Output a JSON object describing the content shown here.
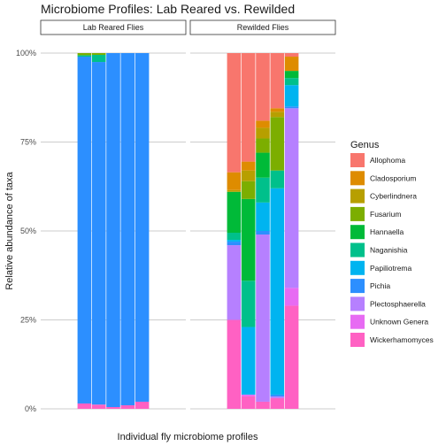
{
  "chart_data": {
    "type": "bar",
    "stacked": true,
    "title": "Microbiome Profiles: Lab Reared vs. Rewilded",
    "xlabel": "Individual fly microbiome profiles",
    "ylabel": "Relative abundance of taxa",
    "ylim": [
      0,
      1
    ],
    "y_ticks": [
      "0%",
      "25%",
      "50%",
      "75%",
      "100%"
    ],
    "grid": true,
    "legend_title": "Genus",
    "legend_position": "right",
    "genera": [
      {
        "name": "Allophoma",
        "color": "#F8766D"
      },
      {
        "name": "Cladosporium",
        "color": "#DE8C00"
      },
      {
        "name": "Cyberlindnera",
        "color": "#B79F00"
      },
      {
        "name": "Fusarium",
        "color": "#7CAE00"
      },
      {
        "name": "Hannaella",
        "color": "#00BA38"
      },
      {
        "name": "Naganishia",
        "color": "#00C08B"
      },
      {
        "name": "Papiliotrema",
        "color": "#00B4F0"
      },
      {
        "name": "Pichia",
        "color": "#2C8FFF"
      },
      {
        "name": "Plectosphaerella",
        "color": "#B680FF"
      },
      {
        "name": "Unknown Genera",
        "color": "#E76BF3"
      },
      {
        "name": "Wickerhamomyces",
        "color": "#FF61C3"
      }
    ],
    "stack_order_bottom_to_top": [
      "Wickerhamomyces",
      "Unknown Genera",
      "Plectosphaerella",
      "Pichia",
      "Papiliotrema",
      "Naganishia",
      "Hannaella",
      "Fusarium",
      "Cyberlindnera",
      "Cladosporium",
      "Allophoma"
    ],
    "panels": [
      {
        "label": "Lab Reared Flies",
        "bars": [
          {
            "Wickerhamomyces": 0.015,
            "Pichia": 0.975,
            "Fusarium": 0.006,
            "Naganishia": 0.004
          },
          {
            "Wickerhamomyces": 0.012,
            "Pichia": 0.963,
            "Naganishia": 0.02,
            "Fusarium": 0.005
          },
          {
            "Wickerhamomyces": 0.005,
            "Pichia": 0.995
          },
          {
            "Wickerhamomyces": 0.01,
            "Pichia": 0.99
          },
          {
            "Wickerhamomyces": 0.02,
            "Pichia": 0.98
          }
        ]
      },
      {
        "label": "Rewilded Flies",
        "bars": [
          {
            "Wickerhamomyces": 0.25,
            "Plectosphaerella": 0.21,
            "Pichia": 0.01,
            "Papiliotrema": 0.005,
            "Naganishia": 0.02,
            "Hannaella": 0.115,
            "Cyberlindnera": 0.005,
            "Cladosporium": 0.05,
            "Allophoma": 0.335
          },
          {
            "Wickerhamomyces": 0.035,
            "Unknown Genera": 0.005,
            "Papiliotrema": 0.19,
            "Naganishia": 0.13,
            "Hannaella": 0.23,
            "Fusarium": 0.05,
            "Cyberlindnera": 0.03,
            "Cladosporium": 0.025,
            "Allophoma": 0.305
          },
          {
            "Wickerhamomyces": 0.02,
            "Plectosphaerella": 0.47,
            "Pichia": 0.01,
            "Papiliotrema": 0.08,
            "Naganishia": 0.07,
            "Hannaella": 0.07,
            "Fusarium": 0.04,
            "Cyberlindnera": 0.03,
            "Cladosporium": 0.02,
            "Allophoma": 0.19
          },
          {
            "Wickerhamomyces": 0.03,
            "Plectosphaerella": 0.005,
            "Pichia": 0.005,
            "Papiliotrema": 0.58,
            "Naganishia": 0.05,
            "Fusarium": 0.15,
            "Cyberlindnera": 0.015,
            "Cladosporium": 0.01,
            "Allophoma": 0.155
          },
          {
            "Wickerhamomyces": 0.29,
            "Unknown Genera": 0.05,
            "Plectosphaerella": 0.505,
            "Pichia": 0.005,
            "Papiliotrema": 0.06,
            "Naganishia": 0.02,
            "Hannaella": 0.02,
            "Cladosporium": 0.04,
            "Allophoma": 0.01
          }
        ]
      }
    ]
  }
}
